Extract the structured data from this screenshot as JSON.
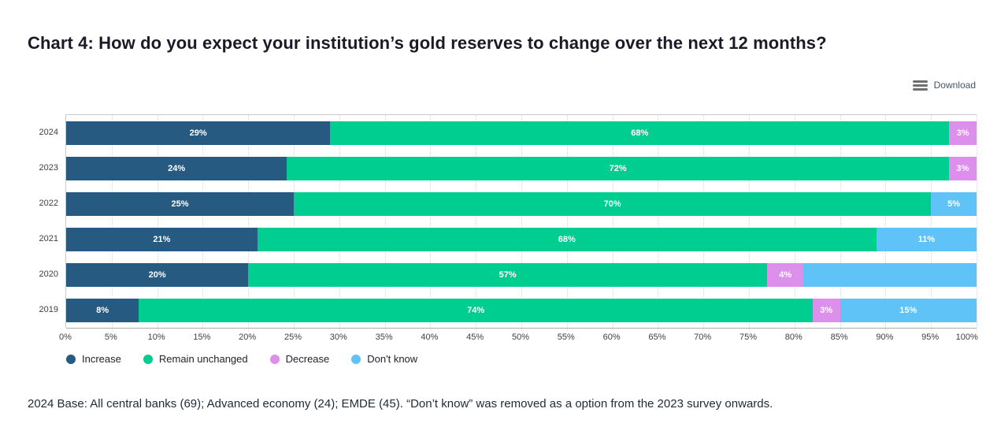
{
  "page": {
    "title": "Chart 4: How do you expect your institution’s gold reserves to change over the next 12 months?",
    "download_label": "Download",
    "footnote": "2024 Base: All central banks (69); Advanced economy (24); EMDE (45). “Don’t know” was removed as a option from the 2023 survey onwards."
  },
  "chart_data": {
    "type": "bar",
    "orientation": "horizontal-stacked",
    "title": "Chart 4: How do you expect your institution’s gold reserves to change over the next 12 months?",
    "categories": [
      "2024",
      "2023",
      "2022",
      "2021",
      "2020",
      "2019"
    ],
    "series": [
      {
        "name": "Increase",
        "color": "#275a80",
        "values": [
          29,
          24,
          25,
          21,
          20,
          8
        ],
        "labels": [
          "29%",
          "24%",
          "25%",
          "21%",
          "20%",
          "8%"
        ]
      },
      {
        "name": "Remain unchanged",
        "color": "#00ce91",
        "values": [
          68,
          72,
          70,
          68,
          57,
          74
        ],
        "labels": [
          "68%",
          "72%",
          "70%",
          "68%",
          "57%",
          "74%"
        ]
      },
      {
        "name": "Decrease",
        "color": "#dc90eb",
        "values": [
          3,
          3,
          0,
          0,
          4,
          3
        ],
        "labels": [
          "3%",
          "3%",
          "",
          "",
          "4%",
          "3%"
        ]
      },
      {
        "name": "Don't know",
        "color": "#5fc3f8",
        "values": [
          0,
          0,
          5,
          11,
          19,
          15
        ],
        "labels": [
          "",
          "",
          "5%",
          "11%",
          "",
          "15%"
        ]
      }
    ],
    "xlim": [
      0,
      100
    ],
    "x_ticks": [
      "0%",
      "5%",
      "10%",
      "15%",
      "20%",
      "25%",
      "30%",
      "35%",
      "40%",
      "45%",
      "50%",
      "55%",
      "60%",
      "65%",
      "70%",
      "75%",
      "80%",
      "85%",
      "90%",
      "95%",
      "100%"
    ],
    "grid": "vertical-dotted",
    "legend_position": "bottom-left",
    "legend": [
      "Increase",
      "Remain unchanged",
      "Decrease",
      "Don't know"
    ]
  }
}
